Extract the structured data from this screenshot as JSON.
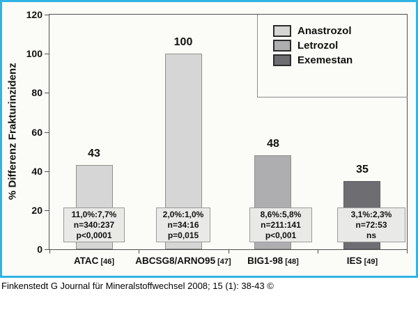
{
  "frame": {
    "border_color": "#30b4e4",
    "background": "#fbfbf7"
  },
  "legend": {
    "items": [
      {
        "label": "Anastrozol",
        "color": "#d6d6d6"
      },
      {
        "label": "Letrozol",
        "color": "#aeaeb0"
      },
      {
        "label": "Exemestan",
        "color": "#6d6d72"
      }
    ]
  },
  "chart_data": {
    "type": "bar",
    "title": "",
    "xlabel": "",
    "ylabel": "% Differenz Frakturinzidenz",
    "ylim": [
      0,
      120
    ],
    "y_ticks": [
      0,
      20,
      40,
      60,
      80,
      100,
      120
    ],
    "grid": false,
    "legend_position": "top-right",
    "categories": [
      "ATAC [46]",
      "ABCSG8/ARNO95 [47]",
      "BIG1-98 [48]",
      "IES [49]"
    ],
    "values": [
      43,
      100,
      48,
      35
    ],
    "bars": [
      {
        "category": "ATAC",
        "ref": "[46]",
        "value": 43,
        "series": "Anastrozol",
        "color": "#d6d6d6",
        "stats": [
          "11,0%:7,7%",
          "n=340:237",
          "p<0,0001"
        ]
      },
      {
        "category": "ABCSG8/ARNO95",
        "ref": "[47]",
        "value": 100,
        "series": "Anastrozol",
        "color": "#d6d6d6",
        "stats": [
          "2,0%:1,0%",
          "n=34:16",
          "p=0,015"
        ]
      },
      {
        "category": "BIG1-98",
        "ref": "[48]",
        "value": 48,
        "series": "Letrozol",
        "color": "#aeaeb0",
        "stats": [
          "8,6%:5,8%",
          "n=211:141",
          "p<0,001"
        ]
      },
      {
        "category": "IES",
        "ref": "[49]",
        "value": 35,
        "series": "Exemestan",
        "color": "#6d6d72",
        "stats": [
          "3,1%:2,3%",
          "n=72:53",
          "ns"
        ]
      }
    ]
  },
  "caption": "Finkenstedt G Journal für Mineralstoffwechsel 2008; 15 (1): 38-43 ©"
}
